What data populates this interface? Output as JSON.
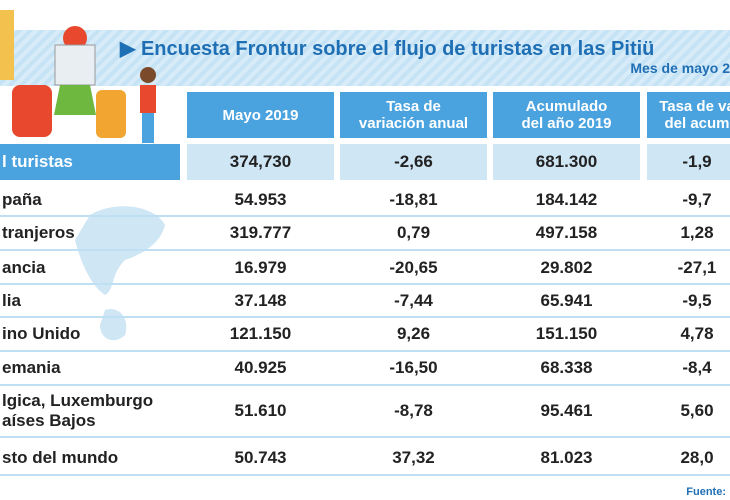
{
  "header": {
    "title": "Encuesta Frontur sobre el flujo de turistas en las Pitiü",
    "subtitle": "Mes de mayo 2"
  },
  "table": {
    "columns": [
      [
        "Mayo 2019"
      ],
      [
        "Tasa de",
        "variación anual"
      ],
      [
        "Acumulado",
        "del año 2019"
      ],
      [
        "Tasa de va",
        "del acum"
      ]
    ],
    "rows": [
      [
        [
          "l turistas"
        ],
        "374,730",
        "-2,66",
        "681.300",
        "-1,9"
      ],
      [
        [
          "paña"
        ],
        "54.953",
        "-18,81",
        "184.142",
        "-9,7"
      ],
      [
        [
          "tranjeros"
        ],
        "319.777",
        "0,79",
        "497.158",
        "1,28"
      ],
      [
        [
          "ancia"
        ],
        "16.979",
        "-20,65",
        "29.802",
        "-27,1"
      ],
      [
        [
          "lia"
        ],
        "37.148",
        "-7,44",
        "65.941",
        "-9,5"
      ],
      [
        [
          "ino Unido"
        ],
        "121.150",
        "9,26",
        "151.150",
        "4,78"
      ],
      [
        [
          "emania"
        ],
        "40.925",
        "-16,50",
        "68.338",
        "-8,4"
      ],
      [
        [
          "lgica, Luxemburgo",
          "aíses Bajos"
        ],
        "51.610",
        "-8,78",
        "95.461",
        "5,60"
      ],
      [
        [
          "sto del mundo"
        ],
        "50.743",
        "37,32",
        "81.023",
        "28,0"
      ]
    ]
  },
  "source": "Fuente:"
}
